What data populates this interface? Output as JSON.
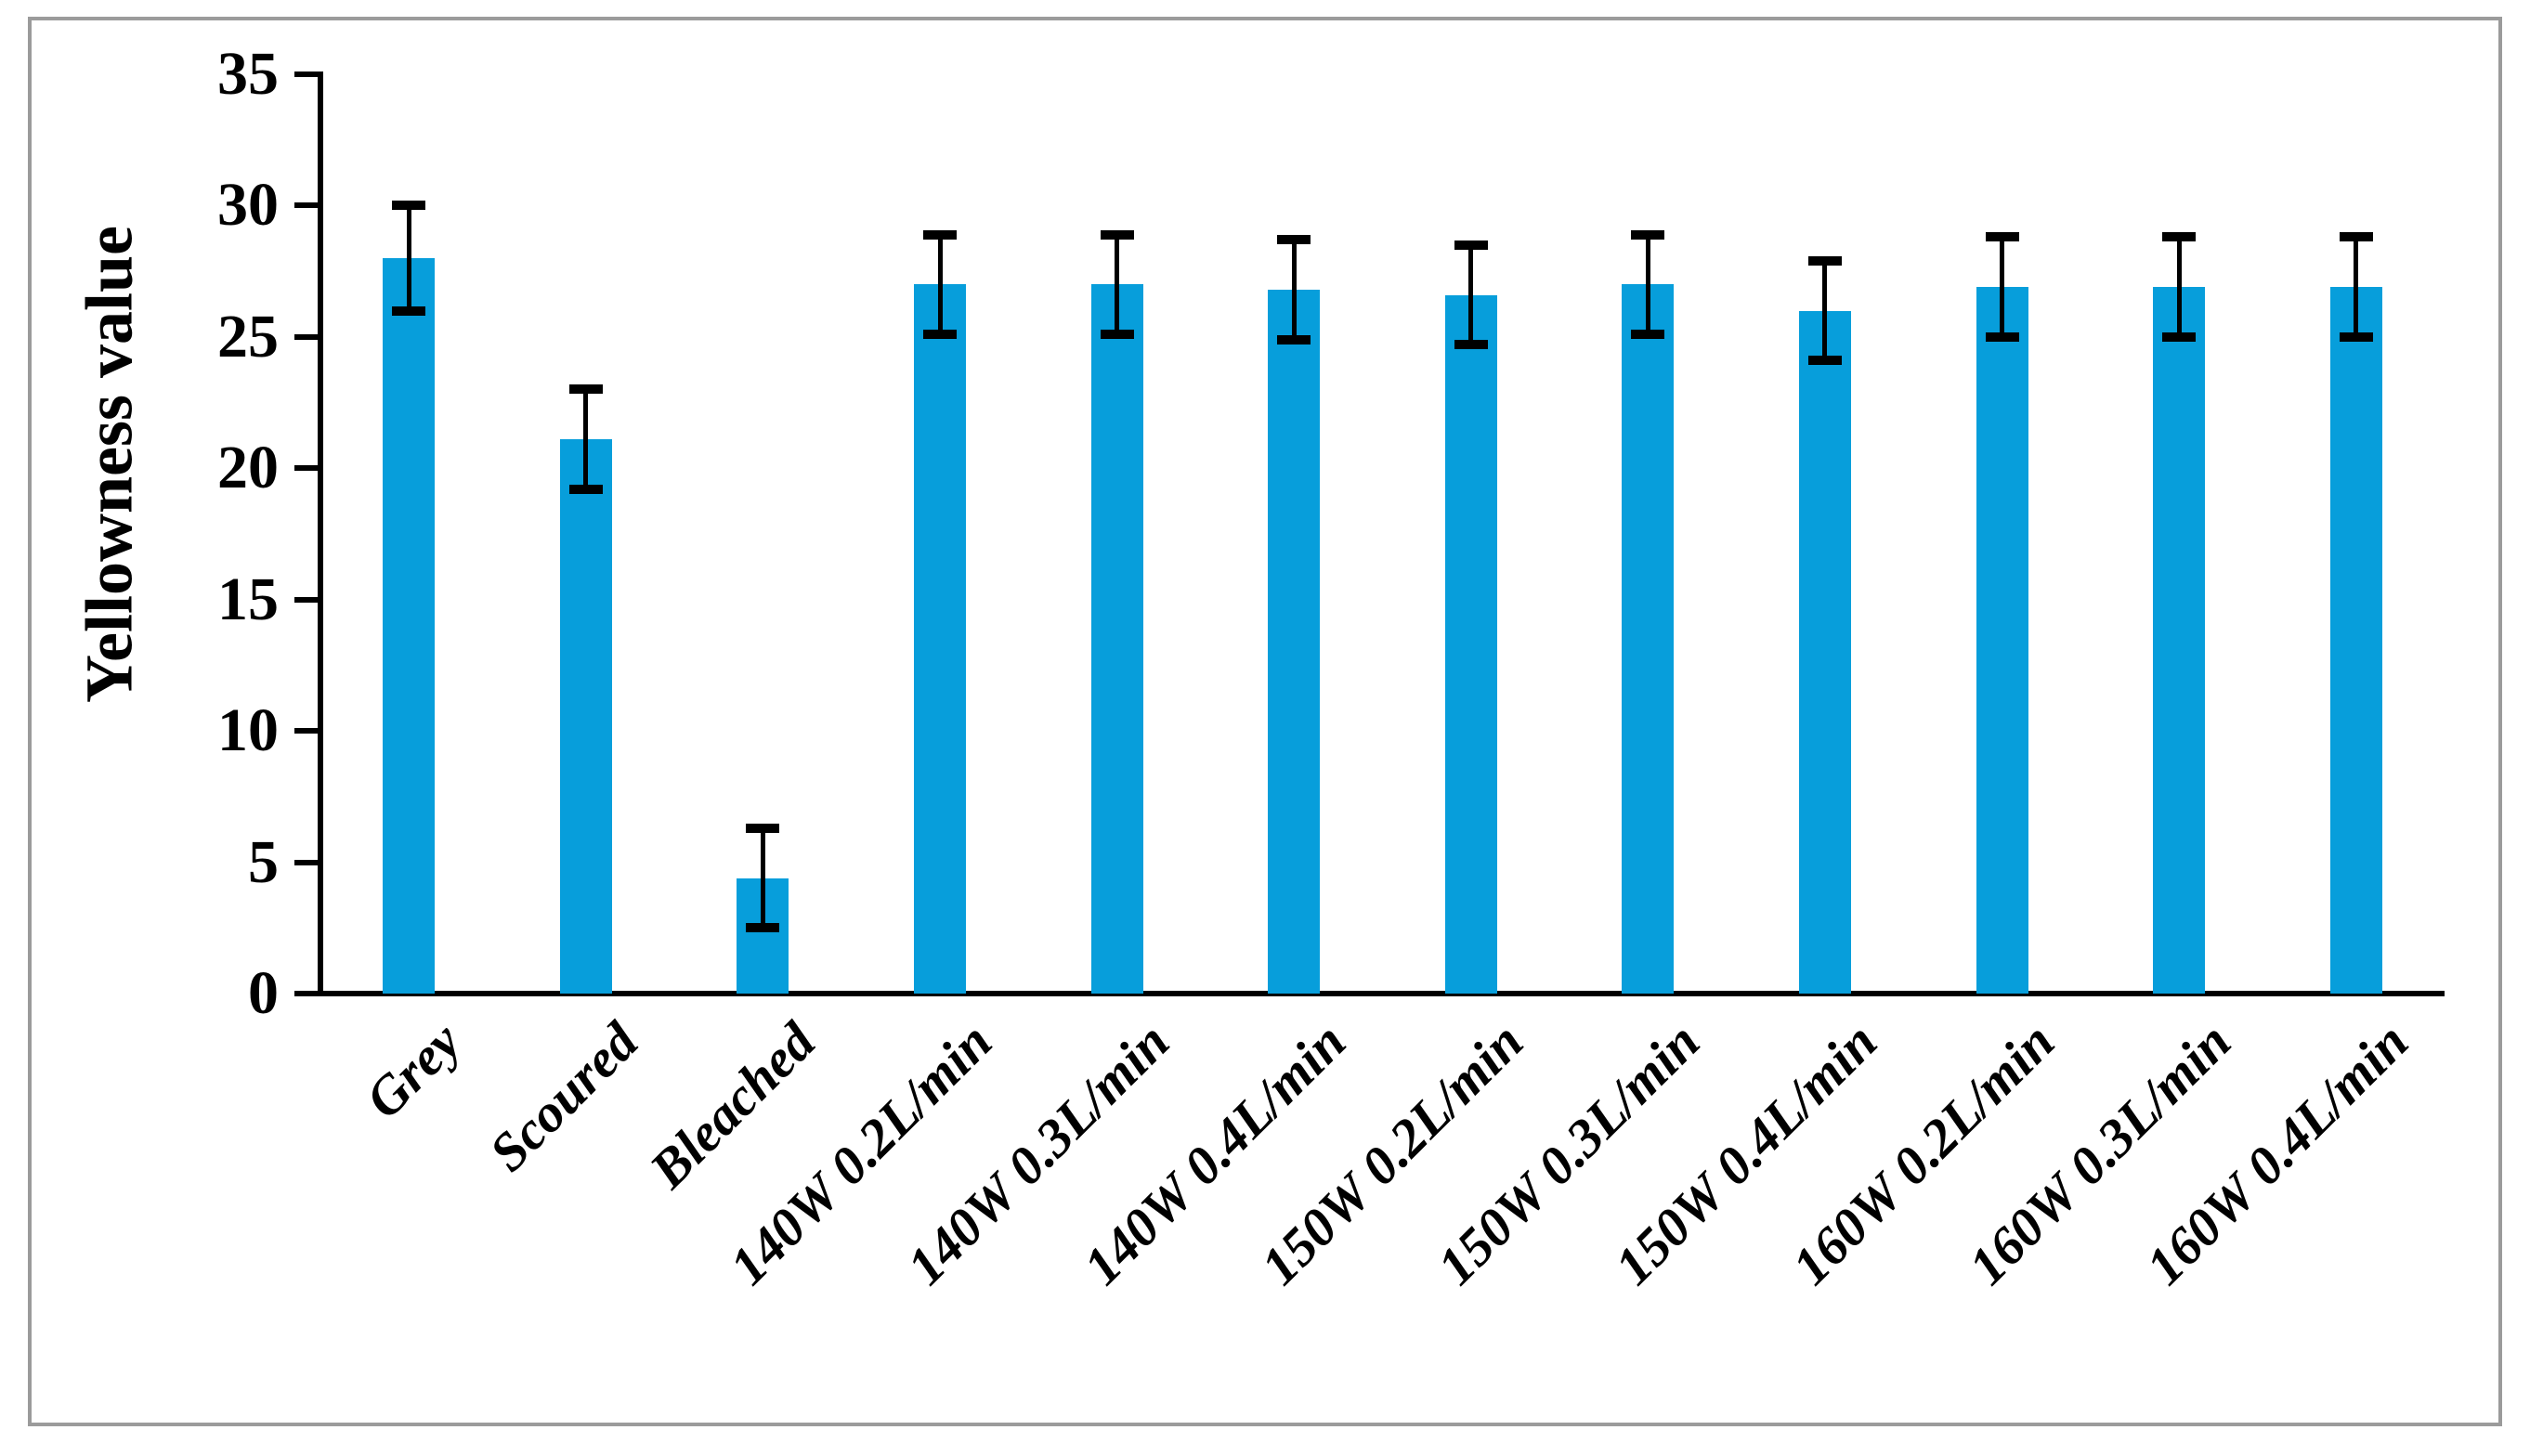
{
  "figure": {
    "background_color": "#ffffff",
    "border_color": "#9b9b9b"
  },
  "chart_data": {
    "type": "bar",
    "title": "",
    "xlabel": "",
    "ylabel": "Yellowness value",
    "categories": [
      "Grey",
      "Scoured",
      "Bleached",
      "140W 0.2L/min",
      "140W 0.3L/min",
      "140W 0.4L/min",
      "150W 0.2L/min",
      "150W 0.3L/min",
      "150W 0.4L/min",
      "160W 0.2L/min",
      "160W 0.3L/min",
      "160W 0.4L/min"
    ],
    "values": [
      28.0,
      21.1,
      4.4,
      27.0,
      27.0,
      26.8,
      26.6,
      27.0,
      26.0,
      26.9,
      26.9,
      26.9
    ],
    "error_plus": [
      2.0,
      1.9,
      1.9,
      1.9,
      1.9,
      1.9,
      1.9,
      1.9,
      1.9,
      1.9,
      1.9,
      1.9
    ],
    "error_minus": [
      2.0,
      1.9,
      1.9,
      1.9,
      1.9,
      1.9,
      1.9,
      1.9,
      1.9,
      1.9,
      1.9,
      1.9
    ],
    "ylim": [
      0,
      35
    ],
    "yticks": [
      0,
      5,
      10,
      15,
      20,
      25,
      30,
      35
    ],
    "ytick_labels": [
      "0",
      "5",
      "10",
      "15",
      "20",
      "25",
      "30",
      "35"
    ],
    "grid": false,
    "legend": null,
    "bar_color": "#079edb",
    "error_bar_color": "#000000",
    "axis_color": "#000000",
    "text_color": "#000000"
  }
}
